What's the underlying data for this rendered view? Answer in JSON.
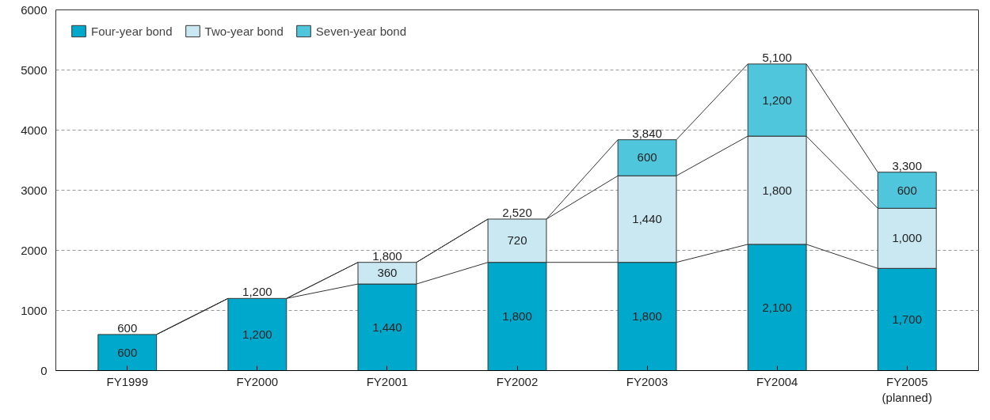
{
  "chart_data": {
    "type": "bar",
    "stacked": true,
    "categories": [
      "FY1999",
      "FY2000",
      "FY2001",
      "FY2002",
      "FY2003",
      "FY2004",
      "FY2005\n(planned)"
    ],
    "series": [
      {
        "name": "Four-year bond",
        "color": "#00a9cc",
        "values": [
          600,
          1200,
          1440,
          1800,
          1800,
          2100,
          1700
        ],
        "value_labels": [
          "600",
          "1,200",
          "1,440",
          "1,800",
          "1,800",
          "2,100",
          "1,700"
        ]
      },
      {
        "name": "Two-year bond",
        "color": "#c9e8f2",
        "values": [
          null,
          null,
          360,
          720,
          1440,
          1800,
          1000
        ],
        "value_labels": [
          null,
          null,
          "360",
          "720",
          "1,440",
          "1,800",
          "1,000"
        ]
      },
      {
        "name": "Seven-year bond",
        "color": "#4fc6dc",
        "values": [
          null,
          null,
          null,
          null,
          600,
          1200,
          600
        ],
        "value_labels": [
          null,
          null,
          null,
          null,
          "600",
          "1,200",
          "600"
        ]
      }
    ],
    "totals": [
      "600",
      "1,200",
      "1,800",
      "2,520",
      "3,840",
      "5,100",
      "3,300"
    ],
    "ylim": [
      0,
      6000
    ],
    "yticks": [
      0,
      1000,
      2000,
      3000,
      4000,
      5000,
      6000
    ],
    "grid": "y",
    "legend": "top left"
  }
}
